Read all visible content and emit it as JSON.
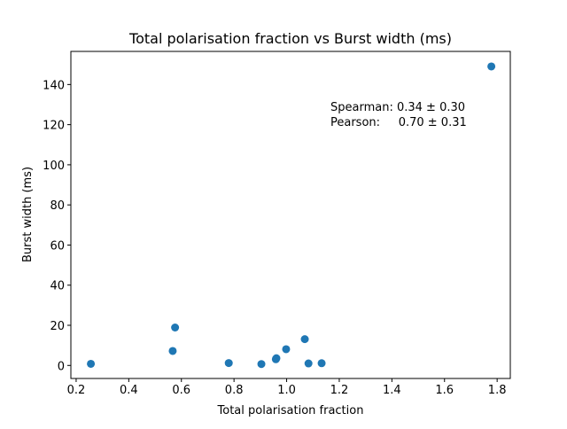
{
  "chart_data": {
    "type": "scatter",
    "title": "Total polarisation fraction vs Burst width (ms)",
    "xlabel": "Total polarisation fraction",
    "ylabel": "Burst width (ms)",
    "xlim": [
      0.18,
      1.85
    ],
    "ylim": [
      -6.5,
      156.5
    ],
    "xticks": [
      0.2,
      0.4,
      0.6,
      0.8,
      1.0,
      1.2,
      1.4,
      1.6,
      1.8
    ],
    "xtick_labels": [
      "0.2",
      "0.4",
      "0.6",
      "0.8",
      "1.0",
      "1.2",
      "1.4",
      "1.6",
      "1.8"
    ],
    "yticks": [
      0,
      20,
      40,
      60,
      80,
      100,
      120,
      140
    ],
    "ytick_labels": [
      "0",
      "20",
      "40",
      "60",
      "80",
      "100",
      "120",
      "140"
    ],
    "grid": false,
    "color": "#1f77b4",
    "points": [
      {
        "x": 0.256,
        "y": 0.8
      },
      {
        "x": 0.567,
        "y": 7.2
      },
      {
        "x": 0.576,
        "y": 18.9
      },
      {
        "x": 0.78,
        "y": 1.2
      },
      {
        "x": 0.904,
        "y": 0.7
      },
      {
        "x": 0.959,
        "y": 3.1
      },
      {
        "x": 0.961,
        "y": 3.6
      },
      {
        "x": 0.998,
        "y": 8.1
      },
      {
        "x": 1.069,
        "y": 13.1
      },
      {
        "x": 1.083,
        "y": 1.0
      },
      {
        "x": 1.133,
        "y": 1.1
      },
      {
        "x": 1.778,
        "y": 149.0
      }
    ],
    "annotations": [
      "Spearman: 0.34 ± 0.30",
      "Pearson:     0.70 ± 0.31"
    ]
  }
}
